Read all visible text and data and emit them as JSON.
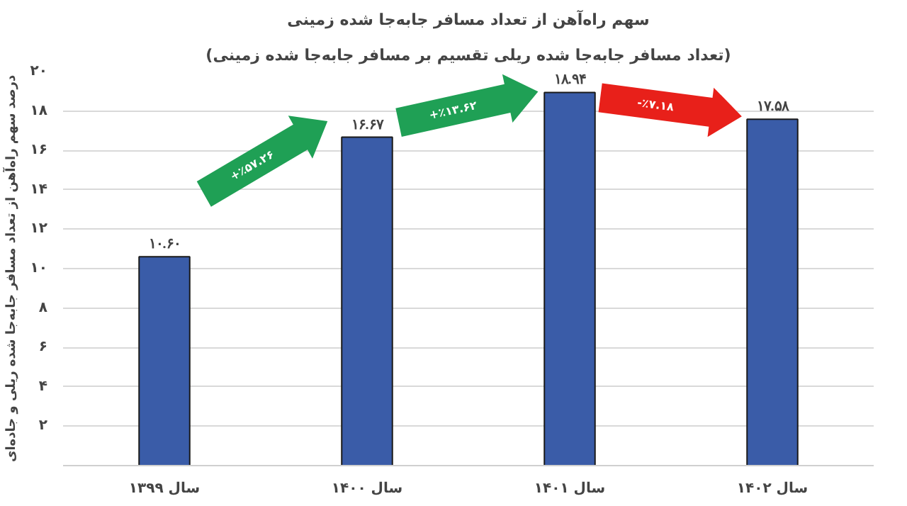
{
  "chart_data": {
    "type": "bar",
    "title": "سهم راه‌آهن از تعداد مسافر جابه‌جا شده زمینی",
    "subtitle": "(تعداد مسافر جابه‌جا شده ریلی تقسیم بر مسافر جابه‌جا شده زمینی)",
    "ylabel": "درصد سهم راه‌آهن از تعداد مسافر جابه‌جا شده ریلی و جاده‌ای",
    "categories": [
      "سال ۱۳۹۹",
      "سال ۱۴۰۰",
      "سال ۱۴۰۱",
      "سال ۱۴۰۲"
    ],
    "values": [
      10.6,
      16.67,
      18.94,
      17.58
    ],
    "value_labels": [
      "۱۰.۶۰",
      "۱۶.۶۷",
      "۱۸.۹۴",
      "۱۷.۵۸"
    ],
    "color": "#3a5ca8",
    "annotations": [
      "+٪۵۷.۲۶",
      "+٪۱۳.۶۲",
      "-٪۷.۱۸"
    ],
    "ylim": [
      0,
      20
    ],
    "yticks": [
      {
        "value": 0,
        "label": null
      },
      {
        "value": 2,
        "label": "۲"
      },
      {
        "value": 4,
        "label": "۴"
      },
      {
        "value": 6,
        "label": "۶"
      },
      {
        "value": 8,
        "label": "۸"
      },
      {
        "value": 10,
        "label": "۱۰"
      },
      {
        "value": 12,
        "label": "۱۲"
      },
      {
        "value": 14,
        "label": "۱۴"
      },
      {
        "value": 16,
        "label": "۱۶"
      },
      {
        "value": 18,
        "label": "۱۸"
      },
      {
        "value": 20,
        "label": "۲۰"
      }
    ],
    "grid": "y"
  }
}
